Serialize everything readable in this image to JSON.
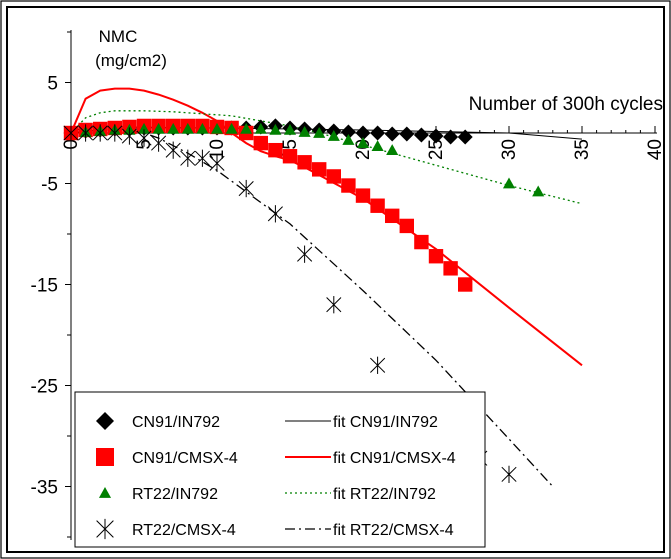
{
  "chart_data": {
    "type": "scatter",
    "title": "",
    "ylabel_line1": "NMC",
    "ylabel_line2": "(mg/cm2)",
    "xlabel": "Number of 300h cycles",
    "xlim": [
      0,
      40
    ],
    "ylim": [
      -40,
      10
    ],
    "x_ticks": [
      "0",
      "5",
      "10",
      "15",
      "20",
      "25",
      "30",
      "35",
      "40"
    ],
    "y_ticks": [
      "5",
      "-5",
      "-15",
      "-25",
      "-35"
    ],
    "grid": false,
    "legend_position": "bottom-left",
    "series": [
      {
        "name": "CN91/IN792",
        "kind": "points",
        "marker": "diamond",
        "color": "#000000",
        "x": [
          0,
          1,
          2,
          3,
          4,
          5,
          6,
          7,
          8,
          9,
          10,
          11,
          12,
          13,
          14,
          15,
          16,
          17,
          18,
          19,
          20,
          21,
          22,
          23,
          24,
          25,
          26,
          27
        ],
        "y": [
          0,
          0.2,
          0.3,
          0.4,
          0.4,
          0.5,
          0.5,
          0.5,
          0.5,
          0.5,
          0.5,
          0.5,
          0.5,
          0.6,
          0.7,
          0.5,
          0.4,
          0.3,
          0.2,
          0.1,
          0,
          0,
          -0.1,
          -0.1,
          -0.2,
          -0.3,
          -0.4,
          -0.4
        ]
      },
      {
        "name": "CN91/CMSX-4",
        "kind": "points",
        "marker": "square",
        "color": "#ff0000",
        "x": [
          0,
          1,
          2,
          3,
          4,
          5,
          6,
          7,
          8,
          9,
          10,
          11,
          12,
          13,
          14,
          15,
          16,
          17,
          18,
          19,
          20,
          21,
          22,
          23,
          24,
          25,
          26,
          27
        ],
        "y": [
          0,
          0.3,
          0.4,
          0.5,
          0.6,
          0.7,
          0.7,
          0.7,
          0.7,
          0.7,
          0.6,
          0.5,
          0,
          -1,
          -1.7,
          -2.3,
          -2.9,
          -3.6,
          -4.3,
          -5.2,
          -6.2,
          -7.2,
          -8.2,
          -9.2,
          -10.8,
          -12.2,
          -13.4,
          -15
        ]
      },
      {
        "name": "RT22/IN792",
        "kind": "points",
        "marker": "triangle",
        "color": "#008000",
        "x": [
          1,
          2,
          3,
          4,
          5,
          6,
          7,
          8,
          9,
          10,
          11,
          12,
          13,
          14,
          15,
          16,
          17,
          18,
          19,
          20,
          21,
          22,
          30,
          32
        ],
        "y": [
          0.1,
          0.2,
          0.3,
          0.3,
          0.4,
          0.4,
          0.4,
          0.4,
          0.4,
          0.4,
          0.4,
          0.4,
          0.4,
          0.3,
          0.3,
          0.1,
          0,
          -0.3,
          -0.7,
          -1,
          -1.3,
          -1.7,
          -5,
          -5.8
        ]
      },
      {
        "name": "RT22/CMSX-4",
        "kind": "points",
        "marker": "asterisk",
        "color": "#000000",
        "x": [
          0,
          1,
          2,
          3,
          4,
          5,
          6,
          7,
          8,
          9,
          10,
          12,
          14,
          16,
          18,
          21,
          28,
          30
        ],
        "y": [
          0,
          0,
          0,
          0,
          -0.3,
          -0.5,
          -1,
          -1.7,
          -2.5,
          -2.5,
          -3,
          -5.5,
          -8,
          -12,
          -17,
          -23,
          -32.2,
          -33.8
        ]
      },
      {
        "name": "fit CN91/IN792",
        "kind": "line",
        "dash": "solid",
        "color": "#000000",
        "width": 1,
        "x": [
          0,
          0.7,
          3,
          10,
          20,
          30,
          35
        ],
        "y": [
          0,
          0.5,
          0.6,
          0.5,
          0.3,
          0,
          -0.6
        ]
      },
      {
        "name": "fit CN91/CMSX-4",
        "kind": "line",
        "dash": "solid",
        "color": "#ff0000",
        "width": 2,
        "x": [
          0,
          1,
          2,
          3,
          4,
          5,
          6,
          7,
          8,
          9,
          10,
          11,
          12,
          13,
          14,
          15,
          16,
          20,
          25,
          30,
          35
        ],
        "y": [
          0,
          3.4,
          4.2,
          4.4,
          4.4,
          4.2,
          3.8,
          3.3,
          2.7,
          2,
          1.2,
          0,
          -1,
          -1.8,
          -2.3,
          -2.7,
          -3.4,
          -6.5,
          -11.5,
          -17.3,
          -23
        ]
      },
      {
        "name": "fit RT22/IN792",
        "kind": "line",
        "dash": "dotted",
        "color": "#008000",
        "width": 1.3,
        "x": [
          0,
          1,
          2,
          3,
          5,
          7,
          9,
          11,
          13,
          15,
          17,
          20,
          25,
          30,
          35
        ],
        "y": [
          0,
          1.5,
          2,
          2.2,
          2.2,
          2.1,
          1.9,
          1.7,
          1.2,
          0.7,
          0,
          -1.2,
          -3.2,
          -5.2,
          -7
        ]
      },
      {
        "name": "fit RT22/CMSX-4",
        "kind": "line",
        "dash": "dashdot",
        "color": "#000000",
        "width": 1.3,
        "x": [
          0,
          2,
          4,
          5,
          6,
          8,
          10,
          15,
          20,
          25,
          30,
          33
        ],
        "y": [
          0,
          0.3,
          0.3,
          0,
          -0.5,
          -2,
          -3.7,
          -9,
          -15.6,
          -22.5,
          -30.3,
          -35
        ]
      }
    ]
  }
}
